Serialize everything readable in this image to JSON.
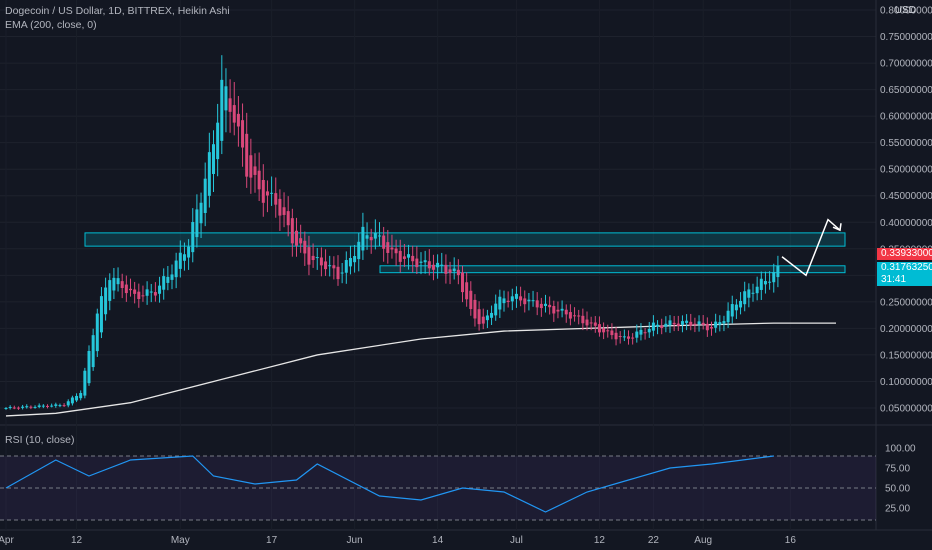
{
  "header": {
    "symbol_line": "Dogecoin / US Dollar, 1D, BITTREX, Heikin Ashi",
    "indicator_line": "EMA (200, close, 0)",
    "currency": "USD",
    "rsi_title": "RSI (10, close)"
  },
  "price_axis": {
    "labels": [
      "0.80000000",
      "0.75000000",
      "0.70000000",
      "0.65000000",
      "0.60000000",
      "0.55000000",
      "0.50000000",
      "0.45000000",
      "0.40000000",
      "0.35000000",
      "0.30000000",
      "0.25000000",
      "0.20000000",
      "0.15000000",
      "0.10000000",
      "0.05000000"
    ]
  },
  "price_tags": {
    "level_value": "0.33933000",
    "level_color": "#f23645",
    "last_value": "0.31763250",
    "last_color": "#00bcd4",
    "countdown": "31:41"
  },
  "rsi_axis": {
    "labels": [
      "100.00",
      "75.00",
      "50.00",
      "25.00"
    ]
  },
  "time_axis": {
    "labels": [
      "Apr",
      "12",
      "May",
      "17",
      "Jun",
      "14",
      "Jul",
      "12",
      "22",
      "Aug",
      "16"
    ]
  },
  "colors": {
    "up": "#26c6da",
    "down": "#d9487a",
    "ema": "#e6e6e6",
    "rsi": "#2196f3",
    "zone": "#00bcd4"
  },
  "chart_data": {
    "type": "candlestick",
    "style": "Heikin Ashi",
    "interval": "1D",
    "exchange": "BITTREX",
    "series": [
      {
        "name": "Dogecoin / US Dollar",
        "x_range": [
          "Apr",
          "Aug 16"
        ]
      },
      {
        "name": "EMA (200, close, 0)",
        "points": [
          [
            0,
            0.035
          ],
          [
            12,
            0.04
          ],
          [
            30,
            0.06
          ],
          [
            50,
            0.1
          ],
          [
            75,
            0.15
          ],
          [
            100,
            0.18
          ],
          [
            120,
            0.195
          ],
          [
            140,
            0.2
          ],
          [
            160,
            0.205
          ],
          [
            185,
            0.21
          ],
          [
            200,
            0.21
          ]
        ]
      },
      {
        "name": "RSI (10, close)",
        "points": [
          [
            0,
            50
          ],
          [
            12,
            85
          ],
          [
            20,
            65
          ],
          [
            30,
            85
          ],
          [
            45,
            90
          ],
          [
            50,
            65
          ],
          [
            60,
            55
          ],
          [
            70,
            60
          ],
          [
            75,
            80
          ],
          [
            90,
            40
          ],
          [
            100,
            35
          ],
          [
            110,
            50
          ],
          [
            120,
            45
          ],
          [
            130,
            20
          ],
          [
            140,
            45
          ],
          [
            150,
            60
          ],
          [
            160,
            75
          ],
          [
            170,
            80
          ],
          [
            185,
            90
          ]
        ]
      }
    ],
    "ylim": [
      0.0,
      0.8
    ],
    "rsi_levels": [
      90,
      50,
      10
    ],
    "annotations": [
      {
        "type": "zone",
        "low": 0.355,
        "high": 0.38,
        "label": ""
      },
      {
        "type": "zone",
        "low": 0.305,
        "high": 0.318,
        "label": ""
      },
      {
        "type": "path",
        "points": [
          [
            0.335
          ],
          [
            0.3
          ],
          [
            0.405
          ],
          [
            0.385
          ]
        ]
      }
    ]
  }
}
